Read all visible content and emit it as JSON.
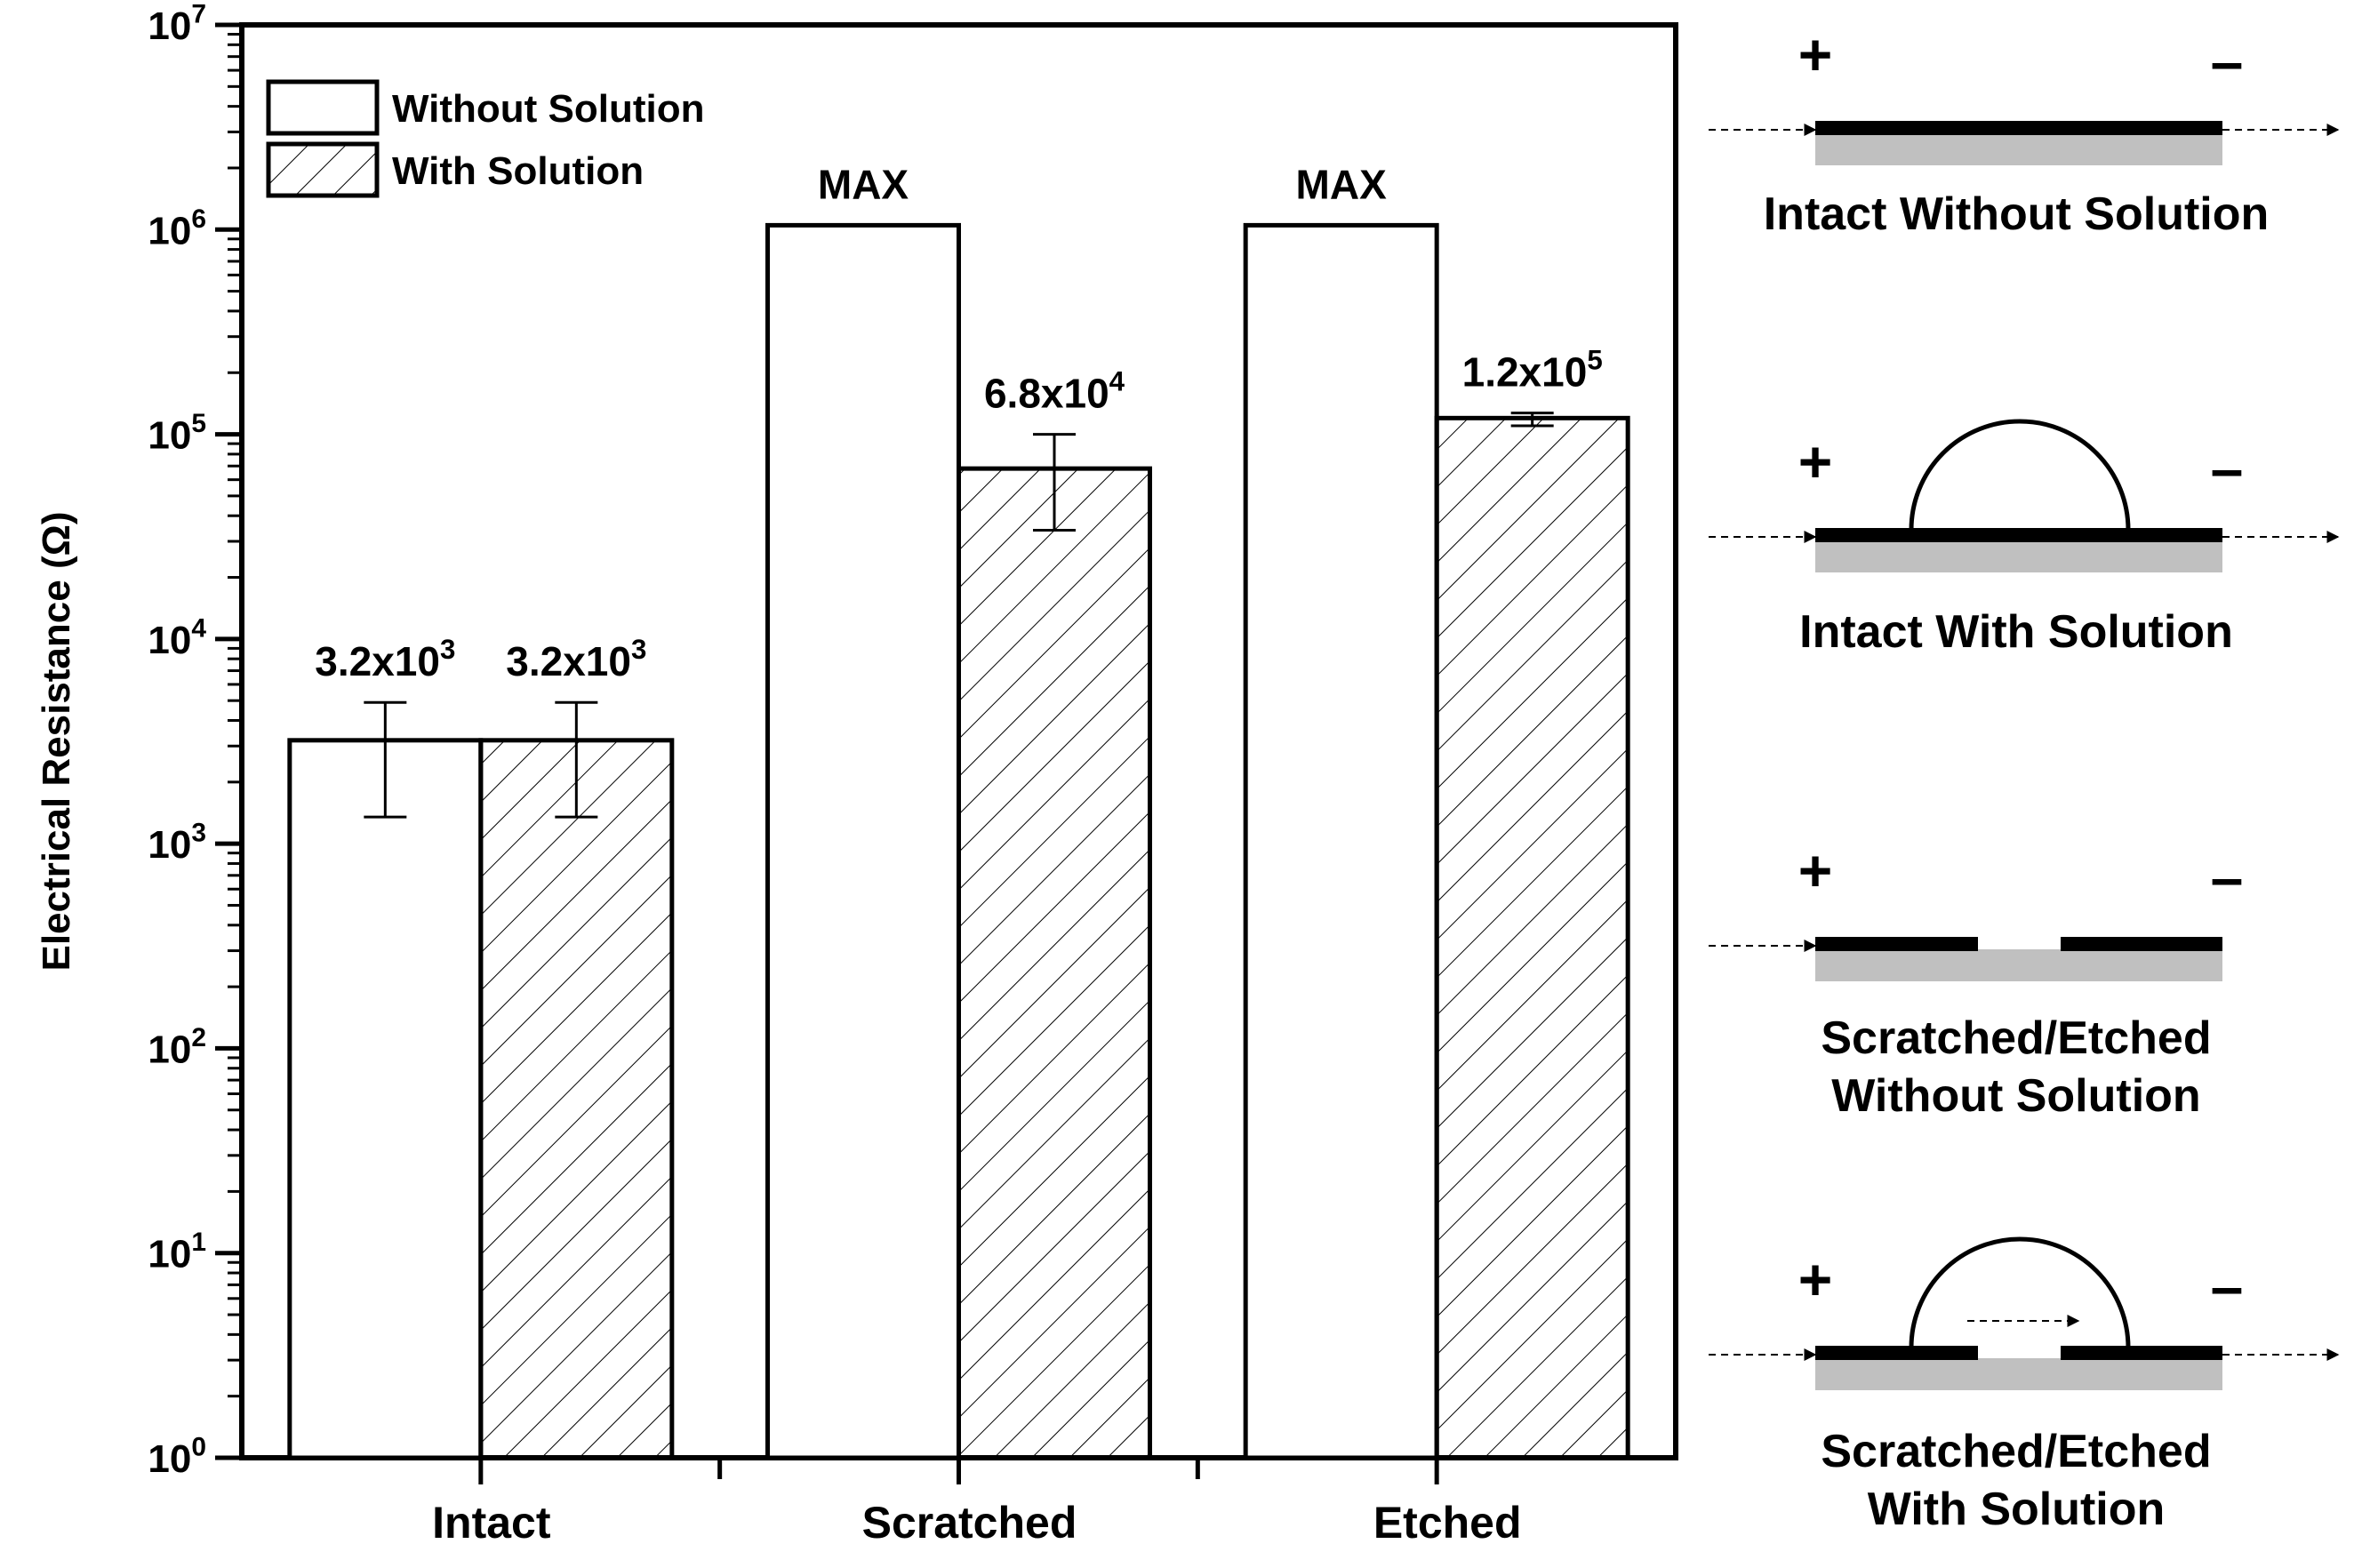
{
  "chart_data": {
    "type": "bar",
    "scale": "log",
    "categories": [
      "Intact",
      "Scratched",
      "Etched"
    ],
    "series": [
      {
        "name": "Without Solution",
        "pattern": "solid-white",
        "values": [
          3200,
          1050000,
          1050000
        ],
        "labels": [
          "3.2x10|3",
          "MAX",
          "MAX"
        ],
        "error_low": [
          1350,
          null,
          null
        ],
        "error_high": [
          4900,
          null,
          null
        ]
      },
      {
        "name": "With Solution",
        "pattern": "diagonal-hatch",
        "values": [
          3200,
          68000,
          120000
        ],
        "labels": [
          "3.2x10|3",
          "6.8x10|4",
          "1.2x10|5"
        ],
        "error_low": [
          1350,
          34000,
          110000
        ],
        "error_high": [
          4900,
          100000,
          127000
        ]
      }
    ],
    "ylabel": "Electrical Resistance (Ω)",
    "ylim": [
      1,
      10000000
    ],
    "yticks": [
      {
        "base": "10",
        "exp": "0"
      },
      {
        "base": "10",
        "exp": "1"
      },
      {
        "base": "10",
        "exp": "2"
      },
      {
        "base": "10",
        "exp": "3"
      },
      {
        "base": "10",
        "exp": "4"
      },
      {
        "base": "10",
        "exp": "5"
      },
      {
        "base": "10",
        "exp": "6"
      },
      {
        "base": "10",
        "exp": "7"
      }
    ],
    "legend_position": "top-left",
    "grid": false,
    "colors": {
      "axis": "#000000",
      "bar_fill": "#ffffff",
      "substrate": "#c0c0c0",
      "conductor": "#000000"
    }
  },
  "schematics": [
    {
      "id": "intact-without",
      "lines": [
        "Intact Without Solution"
      ],
      "gap": false,
      "droplet": false,
      "plus": "+",
      "minus": "–"
    },
    {
      "id": "intact-with",
      "lines": [
        "Intact With Solution"
      ],
      "gap": false,
      "droplet": true,
      "plus": "+",
      "minus": "–"
    },
    {
      "id": "scratched-without",
      "lines": [
        "Scratched/Etched",
        "Without Solution"
      ],
      "gap": true,
      "droplet": false,
      "plus": "+",
      "minus": "–"
    },
    {
      "id": "scratched-with",
      "lines": [
        "Scratched/Etched",
        "With Solution"
      ],
      "gap": true,
      "droplet": true,
      "plus": "+",
      "minus": "–"
    }
  ]
}
